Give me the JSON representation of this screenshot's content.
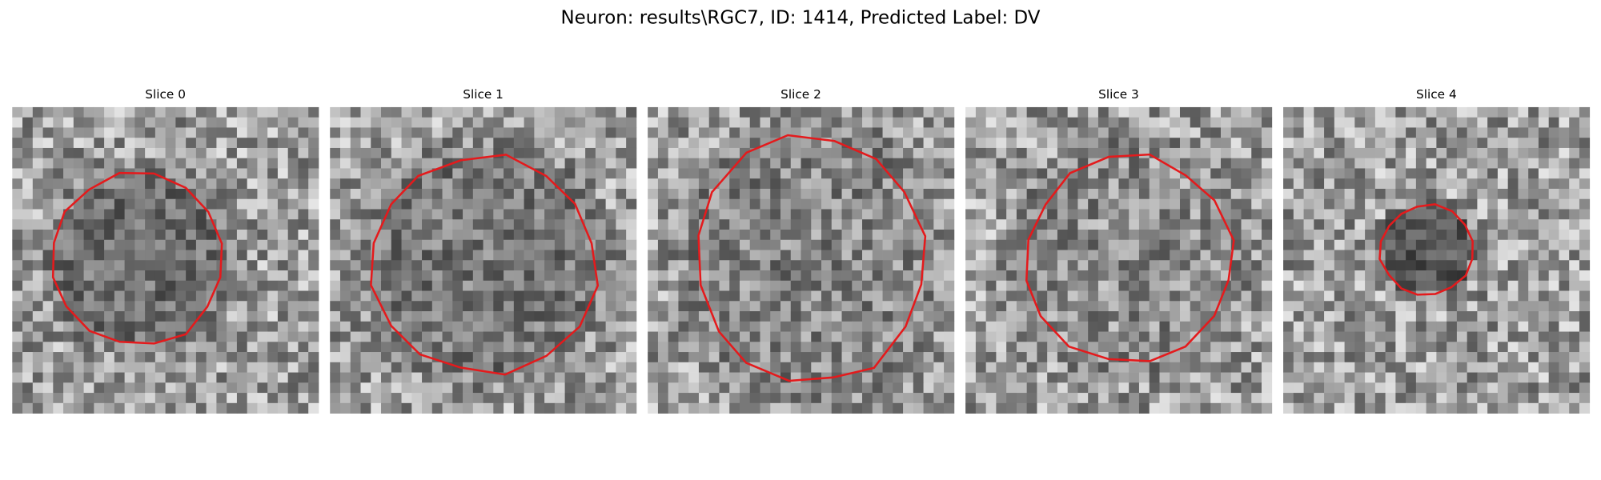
{
  "header": {
    "title": "Neuron: results\\RGC7, ID: 1414, Predicted Label: DV"
  },
  "panels": [
    {
      "title": "Slice 0"
    },
    {
      "title": "Slice 1"
    },
    {
      "title": "Slice 2"
    },
    {
      "title": "Slice 3"
    },
    {
      "title": "Slice 4"
    }
  ]
}
